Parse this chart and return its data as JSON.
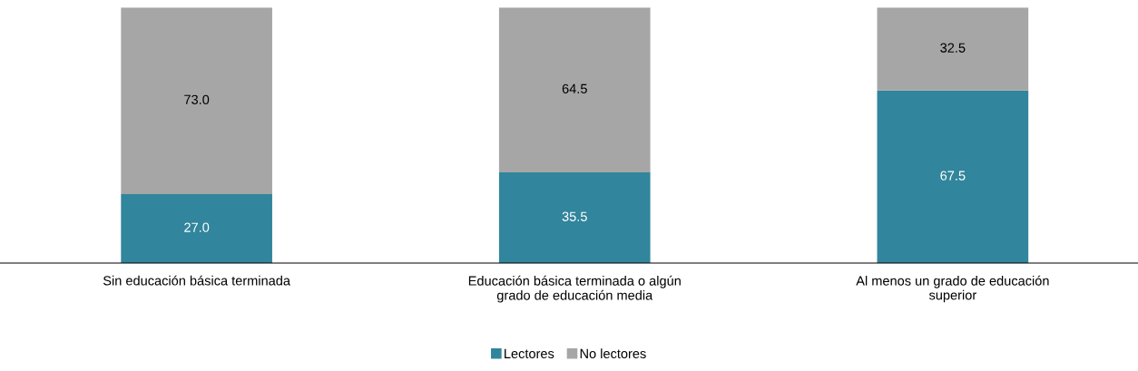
{
  "chart_data": {
    "type": "bar",
    "stacked": true,
    "legend": "bottom",
    "grid": false,
    "categories": [
      "Sin educación básica terminada",
      "Educación básica terminada o algún\ngrado de educación media",
      "Al menos un grado de educación\nsuperior"
    ],
    "series": [
      {
        "name": "Lectores",
        "color": "#31859c",
        "values": [
          27.0,
          35.5,
          67.5
        ],
        "value_labels": [
          "27.0",
          "35.5",
          "67.5"
        ]
      },
      {
        "name": "No lectores",
        "color": "#a6a6a6",
        "values": [
          73.0,
          64.5,
          32.5
        ],
        "value_labels": [
          "73.0",
          "64.5",
          "32.5"
        ]
      }
    ]
  }
}
